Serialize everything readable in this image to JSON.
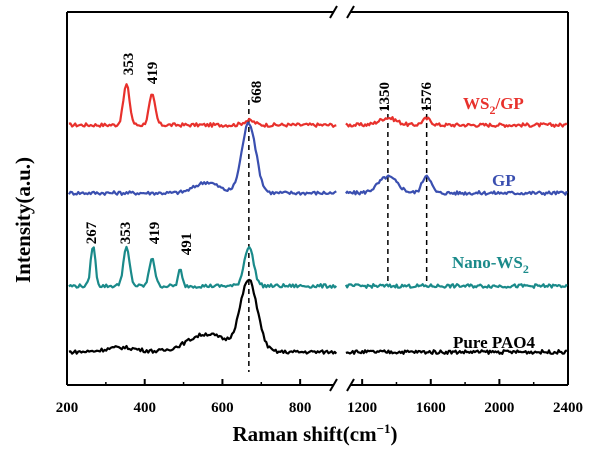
{
  "chart_data": {
    "type": "line",
    "title": "",
    "xlabel": "Raman shift(cm⁻¹)",
    "ylabel": "Intensity(a.u.)",
    "x_break": {
      "left_range": [
        200,
        900
      ],
      "right_range": [
        1100,
        2400
      ]
    },
    "xticks_left": [
      "200",
      "400",
      "600",
      "800"
    ],
    "xticks_right": [
      "1200",
      "1600",
      "2000",
      "2400"
    ],
    "grid": false,
    "legend": "inline labels at right",
    "reference_lines": [
      {
        "x": 668,
        "label": "668"
      },
      {
        "x": 1350,
        "label": "1350"
      },
      {
        "x": 1576,
        "label": "1576"
      }
    ],
    "series": [
      {
        "name": "WS₂/GP",
        "color": "#e8312c",
        "offset": 3.0,
        "peaks": [
          [
            353,
            0.45,
            8
          ],
          [
            419,
            0.33,
            8
          ],
          [
            668,
            0.05,
            14
          ],
          [
            1350,
            0.08,
            50
          ],
          [
            1576,
            0.07,
            25
          ]
        ],
        "peak_labels": [
          "353",
          "419"
        ],
        "label_x": 2250
      },
      {
        "name": "GP",
        "color": "#3a4fb0",
        "offset": 2.0,
        "peaks": [
          [
            560,
            0.12,
            30
          ],
          [
            668,
            0.78,
            18
          ],
          [
            1350,
            0.18,
            55
          ],
          [
            1576,
            0.2,
            25
          ]
        ],
        "peak_labels": [],
        "label_x": 2080
      },
      {
        "name": "Nano-WS₂",
        "color": "#1a8a8a",
        "offset": 1.0,
        "peaks": [
          [
            267,
            0.45,
            6
          ],
          [
            353,
            0.42,
            8
          ],
          [
            419,
            0.32,
            7
          ],
          [
            491,
            0.18,
            5
          ],
          [
            668,
            0.44,
            12
          ]
        ],
        "peak_labels": [
          "267",
          "353",
          "419",
          "491"
        ],
        "label_x": 2180
      },
      {
        "name": "Pure PAO4",
        "color": "#000000",
        "offset": 0.0,
        "peaks": [
          [
            340,
            0.05,
            40
          ],
          [
            560,
            0.2,
            50
          ],
          [
            668,
            0.78,
            22
          ]
        ],
        "peak_labels": [],
        "label_x": 2150
      }
    ]
  },
  "text": {
    "ylabel": "Intensity(a.u.)",
    "xlabel_main": "Raman shift(cm",
    "xlabel_sup": "−1",
    "xlabel_end": ")",
    "ref668": "668",
    "ref1350": "1350",
    "ref1576": "1576",
    "ws2gp_p353": "353",
    "ws2gp_p419": "419",
    "nano_p267": "267",
    "nano_p353": "353",
    "nano_p419": "419",
    "nano_p491": "491",
    "ws2gp_label_a": "WS",
    "ws2gp_label_sub": "2",
    "ws2gp_label_b": "/GP",
    "gp_label": "GP",
    "nano_label_a": "Nano-WS",
    "nano_label_sub": "2",
    "pao_label": "Pure PAO4",
    "ticks": [
      "200",
      "400",
      "600",
      "800",
      "1200",
      "1600",
      "2000",
      "2400"
    ]
  }
}
